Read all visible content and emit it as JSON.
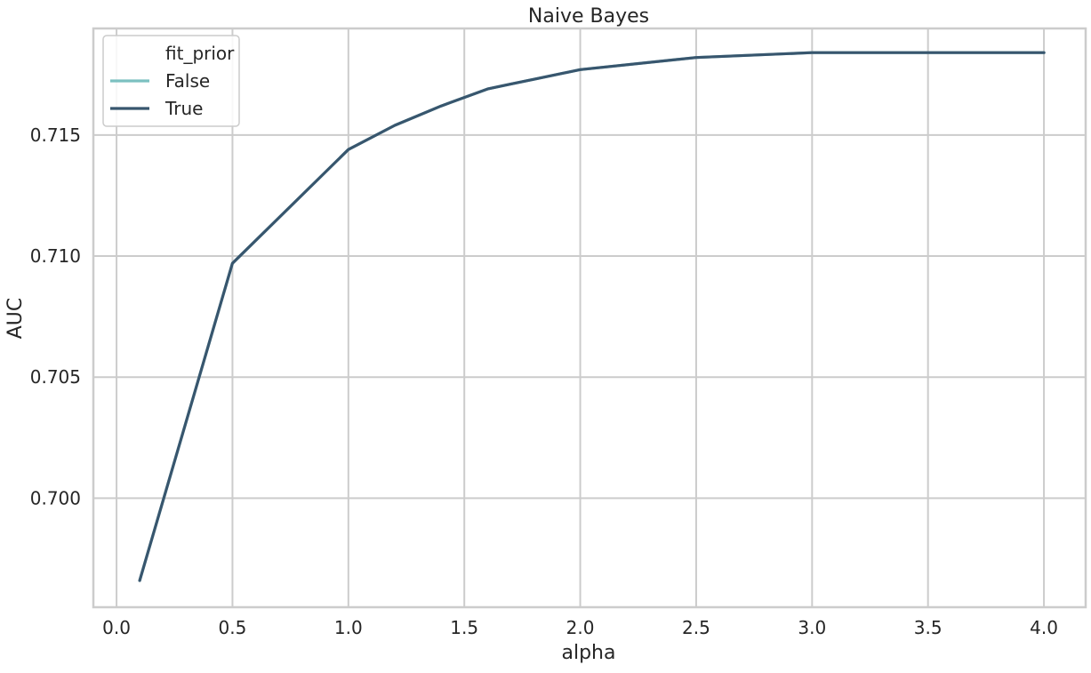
{
  "chart_data": {
    "type": "line",
    "title": "Naive Bayes",
    "xlabel": "alpha",
    "ylabel": "AUC",
    "xlim": [
      -0.1,
      4.18
    ],
    "ylim": [
      0.6955,
      0.7194
    ],
    "x_ticks": [
      0.0,
      0.5,
      1.0,
      1.5,
      2.0,
      2.5,
      3.0,
      3.5,
      4.0
    ],
    "x_tick_labels": [
      "0.0",
      "0.5",
      "1.0",
      "1.5",
      "2.0",
      "2.5",
      "3.0",
      "3.5",
      "4.0"
    ],
    "y_ticks": [
      0.7,
      0.705,
      0.71,
      0.715
    ],
    "y_tick_labels": [
      "0.700",
      "0.705",
      "0.710",
      "0.715"
    ],
    "grid": true,
    "legend": {
      "title": "fit_prior",
      "placement": "top-left",
      "entries": [
        "False",
        "True"
      ]
    },
    "x": [
      0.1,
      0.5,
      1.0,
      1.2,
      1.4,
      1.6,
      1.7,
      1.8,
      2.0,
      2.5,
      3.0,
      3.5,
      4.0
    ],
    "series": [
      {
        "name": "False",
        "color": "#7cc0c0",
        "values": [
          0.6966,
          0.7097,
          0.7144,
          0.7154,
          0.7162,
          0.7169,
          0.7171,
          0.7173,
          0.7177,
          0.7182,
          0.7184,
          0.7184,
          0.7184
        ]
      },
      {
        "name": "True",
        "color": "#38566e",
        "values": [
          0.6966,
          0.7097,
          0.7144,
          0.7154,
          0.7162,
          0.7169,
          0.7171,
          0.7173,
          0.7177,
          0.7182,
          0.7184,
          0.7184,
          0.7184
        ]
      }
    ]
  }
}
